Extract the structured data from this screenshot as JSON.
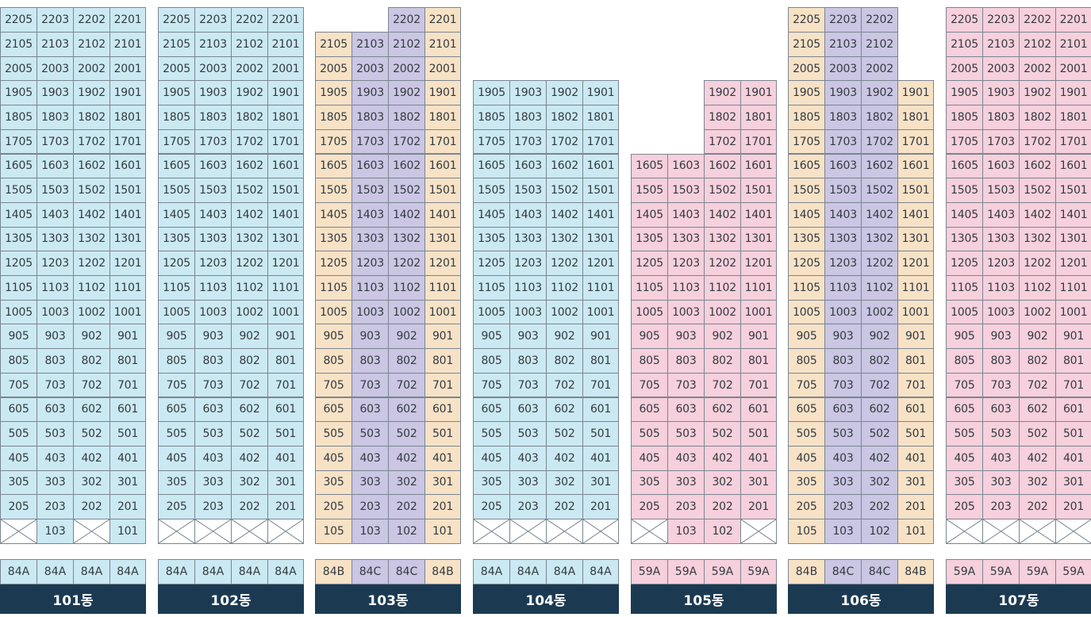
{
  "colors": {
    "blue": "#cbe9f2",
    "pink": "#f6d0dc",
    "beige": "#f7e2c6",
    "purple": "#cac6e3",
    "label_bg": "#1b3a52"
  },
  "units": [
    "05",
    "03",
    "02",
    "01"
  ],
  "buildings": [
    {
      "name": "101동",
      "types": [
        "84A",
        "84A",
        "84A",
        "84A"
      ],
      "colors": [
        "blue",
        "blue",
        "blue",
        "blue"
      ],
      "top_floors": [
        22,
        22,
        22,
        22
      ],
      "first_floor": [
        "x",
        "103",
        "x",
        "101"
      ]
    },
    {
      "name": "102동",
      "types": [
        "84A",
        "84A",
        "84A",
        "84A"
      ],
      "colors": [
        "blue",
        "blue",
        "blue",
        "blue"
      ],
      "top_floors": [
        22,
        22,
        22,
        22
      ],
      "first_floor": [
        "x",
        "x",
        "x",
        "x"
      ]
    },
    {
      "name": "103동",
      "types": [
        "84B",
        "84C",
        "84C",
        "84B"
      ],
      "colors": [
        "beige",
        "purple",
        "purple",
        "beige"
      ],
      "top_floors": [
        21,
        21,
        22,
        22
      ],
      "first_floor": [
        "105",
        "103",
        "102",
        "101"
      ]
    },
    {
      "name": "104동",
      "types": [
        "84A",
        "84A",
        "84A",
        "84A"
      ],
      "colors": [
        "blue",
        "blue",
        "blue",
        "blue"
      ],
      "top_floors": [
        19,
        19,
        19,
        19
      ],
      "first_floor": [
        "x",
        "x",
        "x",
        "x"
      ]
    },
    {
      "name": "105동",
      "types": [
        "59A",
        "59A",
        "59A",
        "59A"
      ],
      "colors": [
        "pink",
        "pink",
        "pink",
        "pink"
      ],
      "top_floors": [
        16,
        16,
        19,
        19
      ],
      "first_floor": [
        "x",
        "103",
        "102",
        "x"
      ]
    },
    {
      "name": "106동",
      "types": [
        "84B",
        "84C",
        "84C",
        "84B"
      ],
      "colors": [
        "beige",
        "purple",
        "purple",
        "beige"
      ],
      "top_floors": [
        22,
        22,
        22,
        19
      ],
      "first_floor": [
        "105",
        "103",
        "102",
        "101"
      ]
    },
    {
      "name": "107동",
      "types": [
        "59A",
        "59A",
        "59A",
        "59A"
      ],
      "colors": [
        "pink",
        "pink",
        "pink",
        "pink"
      ],
      "top_floors": [
        22,
        22,
        22,
        22
      ],
      "first_floor": [
        "x",
        "x",
        "x",
        "x"
      ]
    }
  ]
}
